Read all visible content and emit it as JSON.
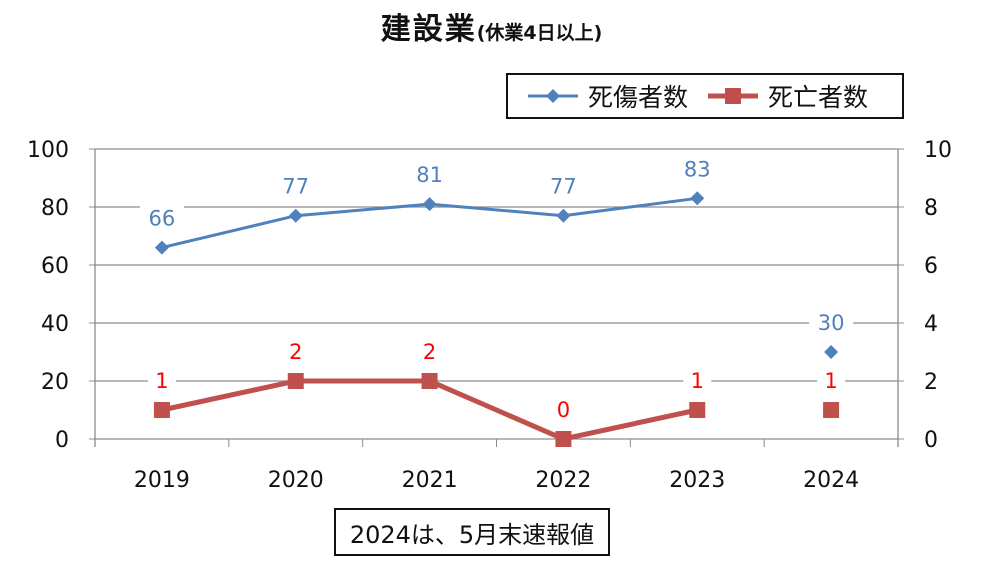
{
  "title": {
    "main": "建設業",
    "sub": "(休業4日以上)"
  },
  "note": "2024は、5月末速報値",
  "colors": {
    "injuries": "#4f81bd",
    "deaths": "#c0504d",
    "death_labels": "#ff0000"
  },
  "chart_data": {
    "type": "line",
    "categories": [
      "2019",
      "2020",
      "2021",
      "2022",
      "2023",
      "2024"
    ],
    "series": [
      {
        "name": "死傷者数",
        "axis": "left",
        "marker": "diamond",
        "values": [
          66,
          77,
          81,
          77,
          83,
          30
        ],
        "line_break_before_last": true
      },
      {
        "name": "死亡者数",
        "axis": "right",
        "marker": "square",
        "values": [
          1,
          2,
          2,
          0,
          1,
          1
        ],
        "line_break_before_last": true
      }
    ],
    "y_left": {
      "min": 0,
      "max": 100,
      "ticks": [
        "0",
        "20",
        "40",
        "60",
        "80",
        "100"
      ]
    },
    "y_right": {
      "min": 0,
      "max": 10,
      "ticks": [
        "0",
        "2",
        "4",
        "6",
        "8",
        "10"
      ]
    },
    "grid": true,
    "legend": "top-right"
  }
}
